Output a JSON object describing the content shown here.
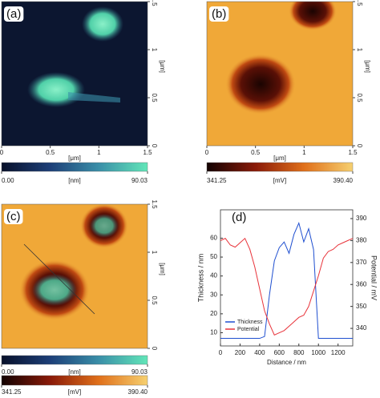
{
  "chart_data": [
    {
      "type": "image",
      "label": "(a)",
      "xlim": [
        0,
        1.5
      ],
      "ylim": [
        0,
        1.5
      ],
      "xticks": [
        0,
        0.5,
        1,
        1.5
      ],
      "yticks": [
        0,
        0.5,
        1,
        1.5
      ],
      "xlabel": "[μm]",
      "ylabel": "[μm]",
      "colorbars": [
        {
          "label": "[nm]",
          "colors": [
            "#08102a",
            "#1d3f78",
            "#3a8fa8",
            "#62e6b8"
          ],
          "lim": [
            0,
            90.03
          ],
          "ticks": [
            {
              "value": 0,
              "label": "0.00"
            },
            {
              "value": 90.03,
              "label": "90.03"
            }
          ]
        }
      ]
    },
    {
      "type": "image",
      "label": "(b)",
      "xlim": [
        0,
        1.5
      ],
      "ylim": [
        0,
        1.5
      ],
      "xticks": [
        0,
        0.5,
        1,
        1.5
      ],
      "yticks": [
        0,
        0.5,
        1,
        1.5
      ],
      "xlabel": "[μm]",
      "ylabel": "[μm]",
      "colorbars": [
        {
          "label": "[mV]",
          "colors": [
            "#120202",
            "#8a1a08",
            "#e0701a",
            "#f6d070"
          ],
          "lim": [
            341.25,
            390.4
          ],
          "ticks": [
            {
              "value": 341.25,
              "label": "341.25"
            },
            {
              "value": 390.4,
              "label": "390.40"
            }
          ]
        }
      ]
    },
    {
      "type": "image",
      "label": "(c)",
      "xlim": [
        0,
        1.5
      ],
      "ylim": [
        0,
        1.5
      ],
      "yticks": [
        0,
        0.5,
        1,
        1.5
      ],
      "ylabel": "[μm]",
      "colorbars": [
        {
          "label": "[nm]",
          "colors": [
            "#08102a",
            "#1d3f78",
            "#3a8fa8",
            "#62e6b8"
          ],
          "lim": [
            0,
            90.03
          ],
          "ticks": [
            {
              "value": 0,
              "label": "0.00"
            },
            {
              "value": 90.03,
              "label": "90.03"
            }
          ]
        },
        {
          "label": "[mV]",
          "colors": [
            "#120202",
            "#8a1a08",
            "#e0701a",
            "#f6d070"
          ],
          "lim": [
            341.25,
            390.4
          ],
          "ticks": [
            {
              "value": 341.25,
              "label": "341.25"
            },
            {
              "value": 390.4,
              "label": "390.40"
            }
          ]
        }
      ]
    },
    {
      "type": "line",
      "label": "(d)",
      "xlabel": "Distance / nm",
      "ylabel": "Thickness / nm",
      "y2label": "Potential / mV",
      "x": [
        0,
        50,
        100,
        150,
        200,
        250,
        300,
        350,
        400,
        450,
        500,
        550,
        600,
        650,
        700,
        750,
        800,
        850,
        900,
        950,
        1000,
        1050,
        1100,
        1150,
        1200,
        1250,
        1300,
        1350
      ],
      "xlim": [
        0,
        1350
      ],
      "xticks": [
        0,
        200,
        400,
        600,
        800,
        1000,
        1200
      ],
      "ylim": [
        3,
        75
      ],
      "yticks": [
        10,
        20,
        30,
        40,
        50,
        60
      ],
      "y2lim": [
        332,
        394
      ],
      "y2ticks": [
        340,
        350,
        360,
        370,
        380,
        390
      ],
      "legend": "lower left",
      "series": [
        {
          "name": "Thickness",
          "color": "#1f4fd0",
          "values": [
            7,
            7,
            7,
            7,
            7,
            7,
            7,
            7,
            7,
            8,
            30,
            48,
            55,
            58,
            52,
            62,
            68,
            58,
            65,
            54,
            7,
            7,
            7,
            7,
            7,
            7,
            7,
            7
          ]
        },
        {
          "name": "Potential",
          "color": "#e8333a",
          "axis": "y2",
          "values": [
            380,
            381,
            378,
            377,
            379,
            381,
            376,
            368,
            358,
            348,
            342,
            337,
            338,
            339,
            341,
            343,
            345,
            346,
            350,
            357,
            364,
            372,
            375,
            376,
            378,
            379,
            380,
            381
          ]
        }
      ]
    }
  ]
}
